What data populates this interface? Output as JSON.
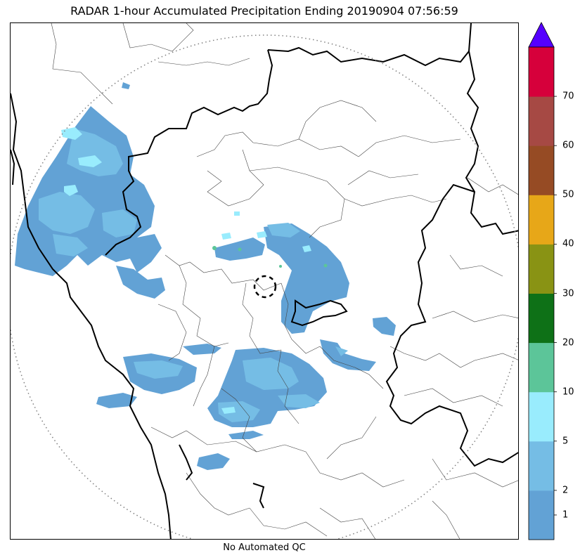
{
  "title": "RADAR 1-hour Accumulated Precipitation Ending 20190904 07:56:59",
  "footer_note": "No Automated QC",
  "colorbar": {
    "extend": "max",
    "extend_color": "#5500ff",
    "levels": [
      {
        "label": "",
        "color": "#62a2d5"
      },
      {
        "label": "1",
        "color": "#75bde5"
      },
      {
        "label": "2",
        "color": "#99ecfd"
      },
      {
        "label": "5",
        "color": "#5cc599"
      },
      {
        "label": "10",
        "color": "#0e7117"
      },
      {
        "label": "20",
        "color": "#899314"
      },
      {
        "label": "30",
        "color": "#e7a718"
      },
      {
        "label": "40",
        "color": "#964b24"
      },
      {
        "label": "50",
        "color": "#a64944"
      },
      {
        "label": "60",
        "color": "#d6003b"
      },
      {
        "label": "70",
        "color": ""
      }
    ]
  },
  "map": {
    "range_ring_color": "#808080",
    "coastline_color": "#000000",
    "radar_site_marker": "dashed-circle"
  }
}
